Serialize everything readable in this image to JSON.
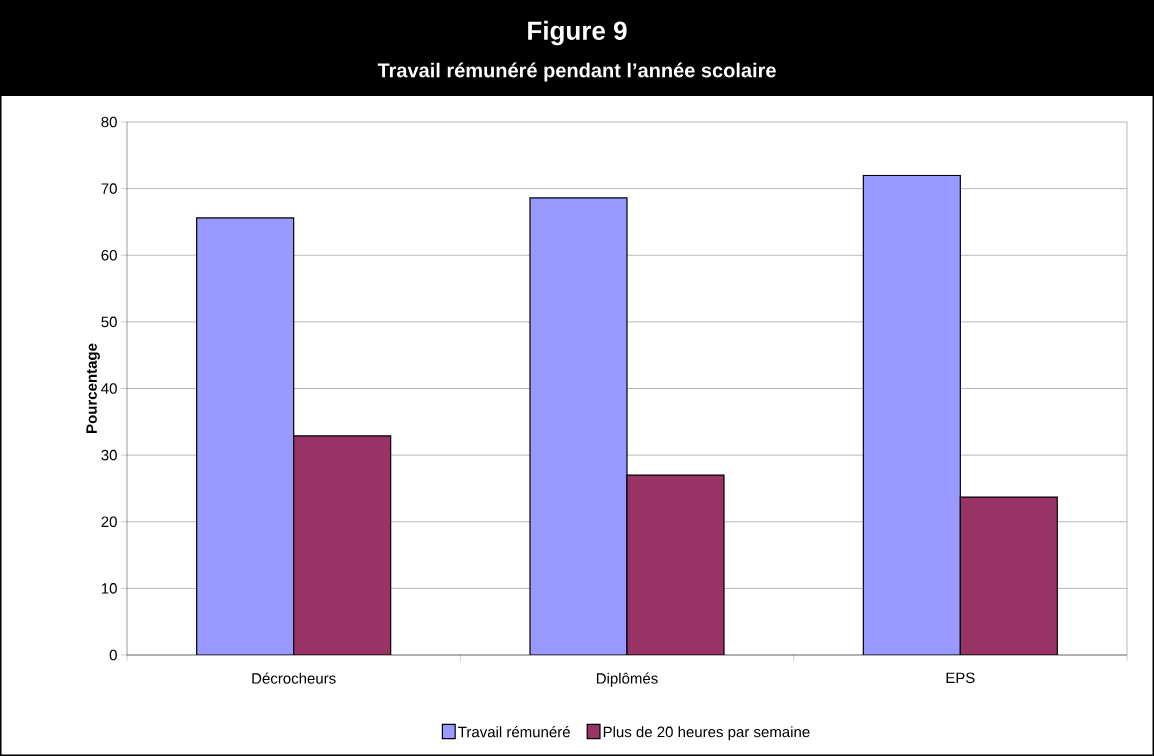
{
  "chart_data": {
    "type": "bar",
    "title": "Figure 9",
    "subtitle": "Travail rémunéré pendant l’année scolaire",
    "ylabel": "Pourcentage",
    "categories": [
      "Décrocheurs",
      "Diplômés",
      "EPS"
    ],
    "series": [
      {
        "name": "Travail rémunéré",
        "color": "#9999ff",
        "values": [
          65.6,
          68.6,
          72.0
        ]
      },
      {
        "name": "Plus de 20 heures par semaine",
        "color": "#993366",
        "values": [
          32.9,
          27.0,
          23.7
        ]
      }
    ],
    "ylim": [
      0,
      80
    ],
    "yticks": [
      0,
      10,
      20,
      30,
      40,
      50,
      60,
      70,
      80
    ],
    "grid": "y",
    "legend": "bottom"
  }
}
